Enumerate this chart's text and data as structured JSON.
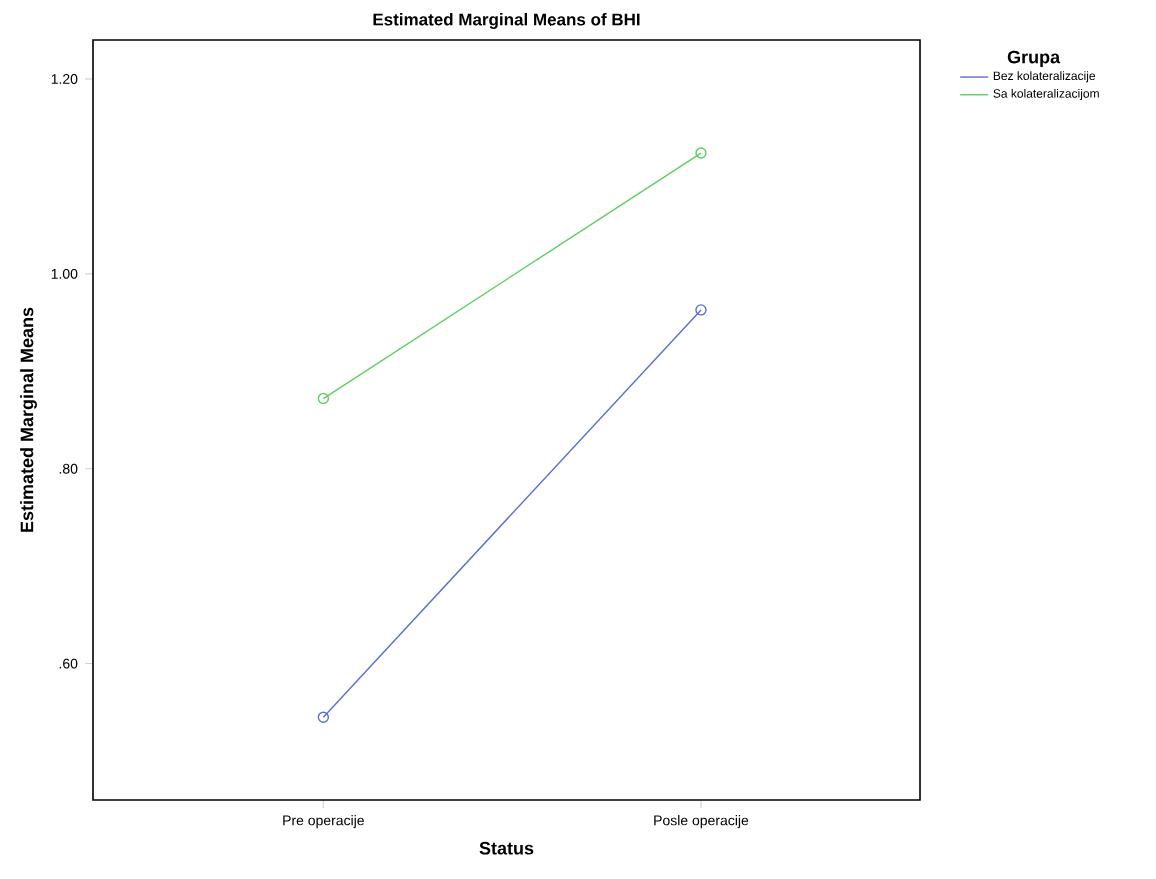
{
  "chart_data": {
    "type": "line",
    "title": "Estimated Marginal Means of BHI",
    "xlabel": "Status",
    "ylabel": "Estimated Marginal Means",
    "legend_title": "Grupa",
    "categories": [
      "Pre operacije",
      "Posle operacije"
    ],
    "series": [
      {
        "name": "Bez kolateralizacije",
        "color": "#5a6ed4",
        "values": [
          0.545,
          0.963
        ]
      },
      {
        "name": "Sa kolateralizacijom",
        "color": "#5ecf5e",
        "values": [
          0.872,
          1.124
        ]
      }
    ],
    "ylim": [
      0.46,
      1.24
    ],
    "yticks": [
      {
        "value": 0.6,
        "label": ".60"
      },
      {
        "value": 0.8,
        "label": ".80"
      },
      {
        "value": 1.0,
        "label": "1.00"
      },
      {
        "value": 1.2,
        "label": "1.20"
      }
    ],
    "legend": "top right",
    "marker": "circle",
    "grid": false,
    "line_style": "solid"
  }
}
